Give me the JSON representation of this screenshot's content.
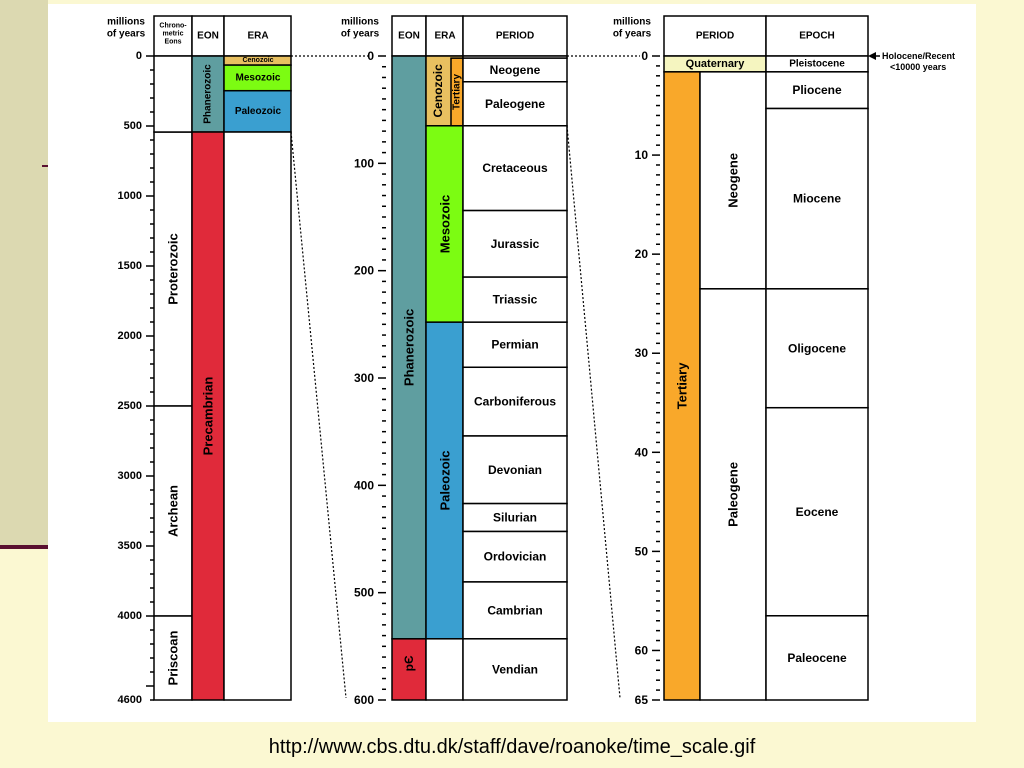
{
  "colors": {
    "phanerozoic": "#5f9ea0",
    "precambrian": "#e02a3a",
    "cenozoic": "#e8c060",
    "mesozoic": "#7cfc12",
    "paleozoic": "#3a9fd0",
    "tertiary": "#f9a82a",
    "quaternary": "#f5f5c0",
    "line": "#000000"
  },
  "caption": "http://www.cbs.dtu.dk/staff/dave/roanoke/time_scale.gif",
  "left_column": {
    "axis_title": [
      "millions",
      "of years"
    ],
    "headers": {
      "chrono": [
        "Chrono-",
        "metric",
        "Eons"
      ],
      "eon": "EON",
      "era": "ERA"
    },
    "ticks": [
      {
        "v": 0,
        "label": "0"
      },
      {
        "v": 500,
        "label": "500"
      },
      {
        "v": 1000,
        "label": "1000"
      },
      {
        "v": 1500,
        "label": "1500"
      },
      {
        "v": 2000,
        "label": "2000"
      },
      {
        "v": 2500,
        "label": "2500"
      },
      {
        "v": 3000,
        "label": "3000"
      },
      {
        "v": 3500,
        "label": "3500"
      },
      {
        "v": 4000,
        "label": "4000"
      },
      {
        "v": 4600,
        "label": "4600"
      }
    ],
    "chrono_eons": [
      {
        "name": "Proterozoic",
        "from": 543,
        "to": 2500
      },
      {
        "name": "Archean",
        "from": 2500,
        "to": 4000
      },
      {
        "name": "Priscoan",
        "from": 4000,
        "to": 4600
      }
    ],
    "eons": [
      {
        "name": "Phanerozoic",
        "from": 0,
        "to": 543,
        "color": "phanerozoic"
      },
      {
        "name": "Precambrian",
        "from": 543,
        "to": 4600,
        "color": "precambrian"
      }
    ],
    "eras": [
      {
        "name": "Cenozoic",
        "from": 0,
        "to": 65,
        "color": "cenozoic"
      },
      {
        "name": "Mesozoic",
        "from": 65,
        "to": 248,
        "color": "mesozoic"
      },
      {
        "name": "Paleozoic",
        "from": 248,
        "to": 543,
        "color": "paleozoic"
      }
    ]
  },
  "middle_column": {
    "axis_title": [
      "millions",
      "of years"
    ],
    "headers": {
      "eon": "EON",
      "era": "ERA",
      "period": "PERIOD"
    },
    "ticks": [
      {
        "v": 0,
        "label": "0"
      },
      {
        "v": 100,
        "label": "100"
      },
      {
        "v": 200,
        "label": "200"
      },
      {
        "v": 300,
        "label": "300"
      },
      {
        "v": 400,
        "label": "400"
      },
      {
        "v": 500,
        "label": "500"
      },
      {
        "v": 600,
        "label": "600"
      }
    ],
    "eons": [
      {
        "name": "Phanerozoic",
        "from": 0,
        "to": 543,
        "color": "phanerozoic"
      },
      {
        "name": "pЄ",
        "from": 543,
        "to": 600,
        "color": "precambrian"
      }
    ],
    "eras": [
      {
        "name": "Cenozoic",
        "from": 0,
        "to": 65,
        "color": "cenozoic"
      },
      {
        "name": "Mesozoic",
        "from": 65,
        "to": 248,
        "color": "mesozoic"
      },
      {
        "name": "Paleozoic",
        "from": 248,
        "to": 543,
        "color": "paleozoic"
      }
    ],
    "sub_era": {
      "name": "Tertiary",
      "from": 2,
      "to": 65,
      "color": "tertiary"
    },
    "periods": [
      {
        "name": "Neogene",
        "from": 2,
        "to": 24
      },
      {
        "name": "Paleogene",
        "from": 24,
        "to": 65
      },
      {
        "name": "Cretaceous",
        "from": 65,
        "to": 144
      },
      {
        "name": "Jurassic",
        "from": 144,
        "to": 206
      },
      {
        "name": "Triassic",
        "from": 206,
        "to": 248
      },
      {
        "name": "Permian",
        "from": 248,
        "to": 290
      },
      {
        "name": "Carboniferous",
        "from": 290,
        "to": 354
      },
      {
        "name": "Devonian",
        "from": 354,
        "to": 417
      },
      {
        "name": "Silurian",
        "from": 417,
        "to": 443
      },
      {
        "name": "Ordovician",
        "from": 443,
        "to": 490
      },
      {
        "name": "Cambrian",
        "from": 490,
        "to": 543
      },
      {
        "name": "Vendian",
        "from": 543,
        "to": 600
      }
    ]
  },
  "right_column": {
    "axis_title": [
      "millions",
      "of years"
    ],
    "headers": {
      "period": "PERIOD",
      "epoch": "EPOCH"
    },
    "ticks": [
      {
        "v": 0,
        "label": "0"
      },
      {
        "v": 10,
        "label": "10"
      },
      {
        "v": 20,
        "label": "20"
      },
      {
        "v": 30,
        "label": "30"
      },
      {
        "v": 40,
        "label": "40"
      },
      {
        "v": 50,
        "label": "50"
      },
      {
        "v": 60,
        "label": "60"
      },
      {
        "v": 65,
        "label": "65"
      }
    ],
    "periods": [
      {
        "name": "Quaternary",
        "from": 0,
        "to": 1.6,
        "color": "quaternary"
      },
      {
        "name": "Tertiary",
        "from": 1.6,
        "to": 65,
        "color": "tertiary"
      }
    ],
    "subperiods": [
      {
        "name": "Neogene",
        "from": 1.6,
        "to": 23.5
      },
      {
        "name": "Paleogene",
        "from": 23.5,
        "to": 65
      }
    ],
    "epochs": [
      {
        "name": "Pleistocene",
        "from": 0,
        "to": 1.6
      },
      {
        "name": "Pliocene",
        "from": 1.6,
        "to": 5.3
      },
      {
        "name": "Miocene",
        "from": 5.3,
        "to": 23.5
      },
      {
        "name": "Oligocene",
        "from": 23.5,
        "to": 35.5
      },
      {
        "name": "Eocene",
        "from": 35.5,
        "to": 56.5
      },
      {
        "name": "Paleocene",
        "from": 56.5,
        "to": 65
      }
    ],
    "annotation": [
      "Holocene/Recent",
      "<10000 years"
    ]
  }
}
